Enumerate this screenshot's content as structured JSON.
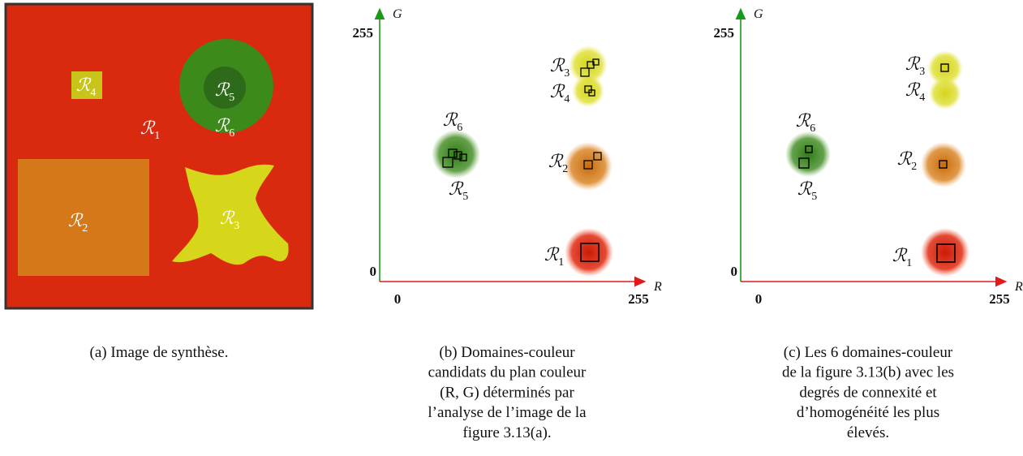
{
  "panel_a": {
    "regions": [
      {
        "symbol": "ℛ",
        "index": "4"
      },
      {
        "symbol": "ℛ",
        "index": "5"
      },
      {
        "symbol": "ℛ",
        "index": "6"
      },
      {
        "symbol": "ℛ",
        "index": "1"
      },
      {
        "symbol": "ℛ",
        "index": "2"
      },
      {
        "symbol": "ℛ",
        "index": "3"
      }
    ],
    "caption": [
      "(a) Image de synthèse."
    ]
  },
  "panel_b": {
    "y_axis_label": "G",
    "x_axis_label": "R",
    "y_ticks": [
      "255",
      "0"
    ],
    "x_ticks": [
      "0",
      "255"
    ],
    "regions": [
      {
        "symbol": "ℛ",
        "index": "3"
      },
      {
        "symbol": "ℛ",
        "index": "4"
      },
      {
        "symbol": "ℛ",
        "index": "6"
      },
      {
        "symbol": "ℛ",
        "index": "5"
      },
      {
        "symbol": "ℛ",
        "index": "2"
      },
      {
        "symbol": "ℛ",
        "index": "1"
      }
    ],
    "caption": [
      "(b) Domaines-couleur",
      "candidats du plan couleur",
      "(R, G) déterminés par",
      "l’analyse de l’image de la",
      "figure 3.13(a)."
    ]
  },
  "panel_c": {
    "y_axis_label": "G",
    "x_axis_label": "R",
    "y_ticks": [
      "255",
      "0"
    ],
    "x_ticks": [
      "0",
      "255"
    ],
    "regions": [
      {
        "symbol": "ℛ",
        "index": "3"
      },
      {
        "symbol": "ℛ",
        "index": "4"
      },
      {
        "symbol": "ℛ",
        "index": "6"
      },
      {
        "symbol": "ℛ",
        "index": "5"
      },
      {
        "symbol": "ℛ",
        "index": "2"
      },
      {
        "symbol": "ℛ",
        "index": "1"
      }
    ],
    "caption": [
      "(c) Les 6 domaines-couleur",
      "de la figure 3.13(b) avec les",
      "degrés de connexité et",
      "d’homogénéité les plus",
      "élevés."
    ]
  }
}
